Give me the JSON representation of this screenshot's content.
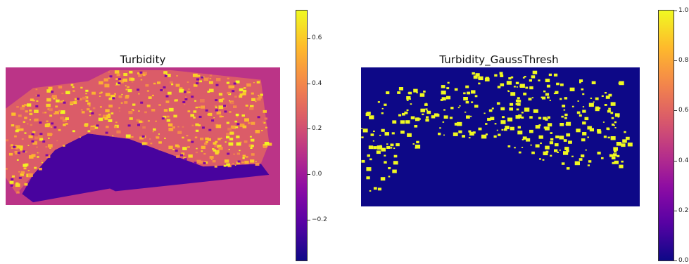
{
  "chart_data": [
    {
      "type": "heatmap",
      "title": "Turbidity",
      "colormap": "plasma",
      "colorbar": {
        "min": -0.38,
        "max": 0.72,
        "ticks": [
          -0.2,
          0.0,
          0.2,
          0.4,
          0.6
        ],
        "tick_labels": [
          "−0.2",
          "0.0",
          "0.2",
          "0.4",
          "0.6"
        ]
      },
      "background_value": 0.1,
      "axes_visible": false
    },
    {
      "type": "heatmap",
      "title": "Turbidity_GaussThresh",
      "colormap": "plasma",
      "colorbar": {
        "min": 0.0,
        "max": 1.0,
        "ticks": [
          0.0,
          0.2,
          0.4,
          0.6,
          0.8,
          1.0
        ],
        "tick_labels": [
          "0.0",
          "0.2",
          "0.4",
          "0.6",
          "0.8",
          "1.0"
        ]
      },
      "background_value": 0.0,
      "axes_visible": false
    }
  ]
}
